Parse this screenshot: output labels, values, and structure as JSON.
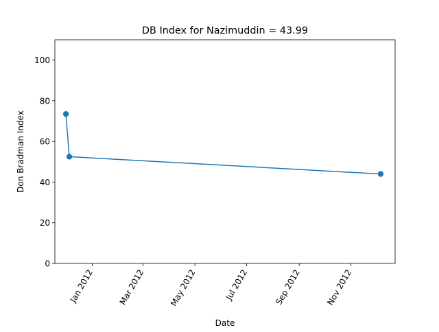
{
  "chart_data": {
    "type": "line",
    "title": "DB Index for Nazimuddin = 43.99",
    "xlabel": "Date",
    "ylabel": "Don Bradman Index",
    "grid": false,
    "legend": "none",
    "x_axis": {
      "type": "date",
      "range": [
        "2011-11-18",
        "2012-12-23"
      ],
      "ticks": [
        {
          "date": "2012-01-01",
          "label": "Jan 2012"
        },
        {
          "date": "2012-03-01",
          "label": "Mar 2012"
        },
        {
          "date": "2012-05-01",
          "label": "May 2012"
        },
        {
          "date": "2012-07-01",
          "label": "Jul 2012"
        },
        {
          "date": "2012-09-01",
          "label": "Sep 2012"
        },
        {
          "date": "2012-11-01",
          "label": "Nov 2012"
        }
      ]
    },
    "y_axis": {
      "range": [
        0,
        110
      ],
      "ticks": [
        0,
        20,
        40,
        60,
        80,
        100
      ]
    },
    "series": [
      {
        "color": "#1f77b4",
        "marker": "circle",
        "points": [
          {
            "x": "2011-12-01",
            "y": 73.5
          },
          {
            "x": "2011-12-05",
            "y": 52.5
          },
          {
            "x": "2012-12-06",
            "y": 43.99
          }
        ]
      }
    ]
  }
}
